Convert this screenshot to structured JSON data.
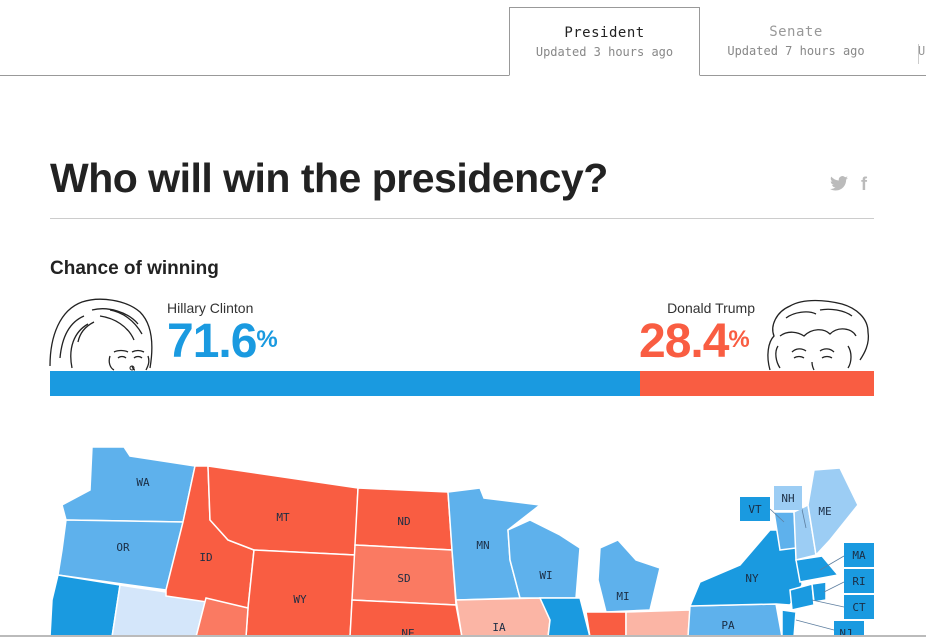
{
  "tabs": [
    {
      "label": "President",
      "updated": "Updated 3 hours ago"
    },
    {
      "label": "Senate",
      "updated": "Updated 7 hours ago"
    }
  ],
  "tab_cutoff": "U",
  "title": "Who will win the presidency?",
  "share": {
    "twitter": "twitter-icon",
    "facebook": "facebook-icon",
    "facebook_glyph": "f"
  },
  "chance": {
    "heading": "Chance of winning",
    "clinton": {
      "name": "Hillary Clinton",
      "value": "71.6",
      "percent_sign": "%",
      "color": "#1a9ae0",
      "fraction": 0.716
    },
    "trump": {
      "name": "Donald Trump",
      "value": "28.4",
      "percent_sign": "%",
      "color": "#f95d42",
      "fraction": 0.284
    }
  },
  "colors": {
    "dem": "#1a9ae0",
    "dem_mid": "#5eb1ec",
    "dem_light": "#9ccdf4",
    "dem_pale": "#d4e6fa",
    "rep": "#f95d42",
    "rep_mid": "#fa7a62",
    "rep_light": "#fbb5a5"
  },
  "map": {
    "states": [
      "WA",
      "OR",
      "ID",
      "MT",
      "WY",
      "ND",
      "SD",
      "NE",
      "MN",
      "WI",
      "MI",
      "IA",
      "NY",
      "PA",
      "VT",
      "NH",
      "ME",
      "MA",
      "RI",
      "CT",
      "NJ"
    ]
  }
}
